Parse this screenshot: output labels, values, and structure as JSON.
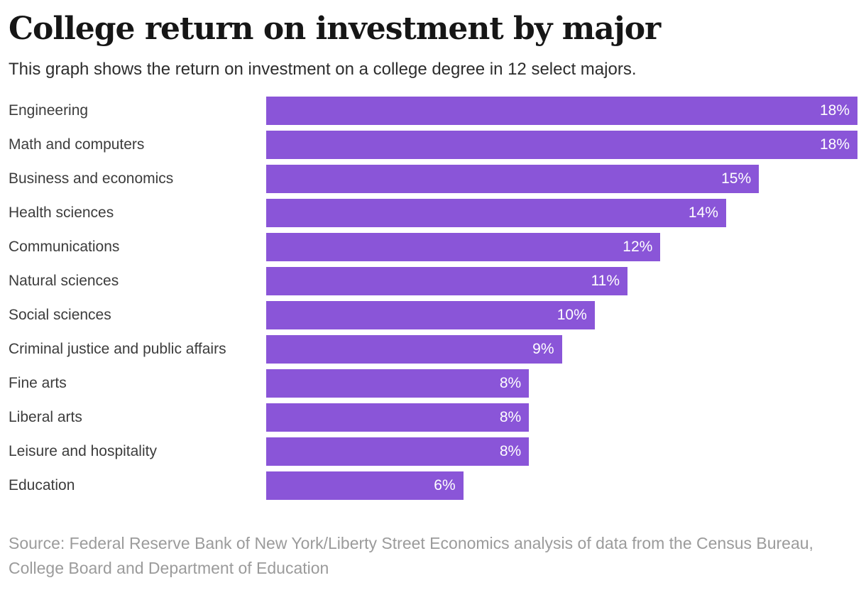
{
  "header": {
    "title": "College return on investment by major",
    "subtitle": "This graph shows the return on investment on a college degree in 12 select majors."
  },
  "chart_data": {
    "type": "bar",
    "orientation": "horizontal",
    "title": "College return on investment by major",
    "xlabel": "",
    "ylabel": "",
    "xlim": [
      0,
      18
    ],
    "grid": false,
    "legend": false,
    "value_suffix": "%",
    "categories": [
      "Engineering",
      "Math and computers",
      "Business and economics",
      "Health sciences",
      "Communications",
      "Natural sciences",
      "Social sciences",
      "Criminal justice and public affairs",
      "Fine arts",
      "Liberal arts",
      "Leisure and hospitality",
      "Education"
    ],
    "values": [
      18,
      18,
      15,
      14,
      12,
      11,
      10,
      9,
      8,
      8,
      8,
      6
    ],
    "value_labels": [
      "18%",
      "18%",
      "15%",
      "14%",
      "12%",
      "11%",
      "10%",
      "9%",
      "8%",
      "8%",
      "8%",
      "6%"
    ]
  },
  "colors": {
    "bar": "#8a55d8",
    "value_label": "#ffffff",
    "title": "#161616",
    "category_label": "#3c3c3c",
    "source_text": "#9b9b9b"
  },
  "footer": {
    "source": "Source: Federal Reserve Bank of New York/Liberty Street Economics analysis of data from the Census Bureau, College Board and Department of Education"
  }
}
